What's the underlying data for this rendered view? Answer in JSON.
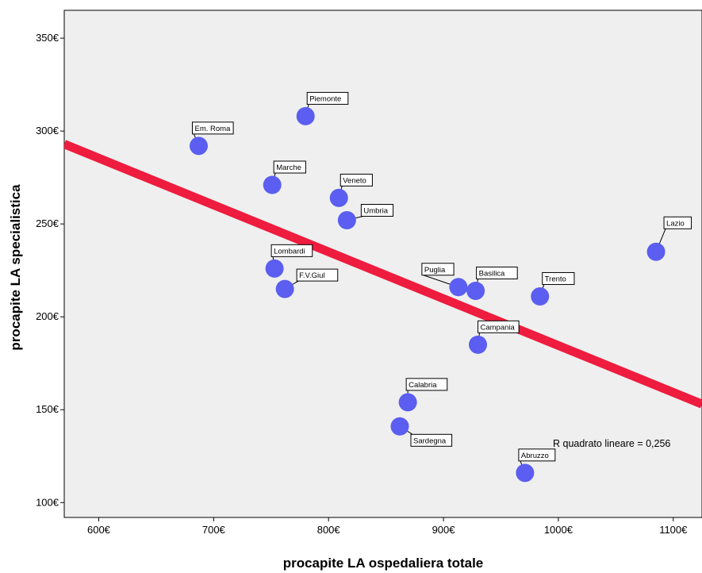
{
  "chart_data": {
    "type": "scatter",
    "title": "",
    "xlabel": "procapite LA ospedaliera totale",
    "ylabel": "procapite LA specialistica",
    "xlim": [
      570,
      1125
    ],
    "ylim": [
      92,
      365
    ],
    "x_ticks": [
      600,
      700,
      800,
      900,
      1000,
      1100
    ],
    "y_ticks": [
      100,
      150,
      200,
      250,
      300,
      350
    ],
    "x_tick_labels": [
      "600€",
      "700€",
      "800€",
      "900€",
      "1000€",
      "1100€"
    ],
    "y_tick_labels": [
      "100€",
      "150€",
      "200€",
      "250€",
      "300€",
      "350€"
    ],
    "grid": false,
    "colors": {
      "points": "#5b5ef0",
      "fit_line": "#ee1c3e",
      "plot_bg": "#efefef"
    },
    "points": [
      {
        "label": "Piemonte",
        "x": 780,
        "y": 308
      },
      {
        "label": "Em. Roma",
        "x": 687,
        "y": 292
      },
      {
        "label": "Marche",
        "x": 751,
        "y": 271
      },
      {
        "label": "Veneto",
        "x": 809,
        "y": 264
      },
      {
        "label": "Umbria",
        "x": 816,
        "y": 252
      },
      {
        "label": "Lazio",
        "x": 1085,
        "y": 235
      },
      {
        "label": "Lombardi",
        "x": 753,
        "y": 226
      },
      {
        "label": "F.V.Giul",
        "x": 762,
        "y": 215
      },
      {
        "label": "Puglia",
        "x": 913,
        "y": 216
      },
      {
        "label": "Basilica",
        "x": 928,
        "y": 214
      },
      {
        "label": "Trento",
        "x": 984,
        "y": 211
      },
      {
        "label": "Campania",
        "x": 930,
        "y": 185
      },
      {
        "label": "Calabria",
        "x": 869,
        "y": 154
      },
      {
        "label": "Sardegna",
        "x": 862,
        "y": 141
      },
      {
        "label": "Abruzzo",
        "x": 971,
        "y": 116
      }
    ],
    "fit_line": {
      "x": [
        570,
        1125
      ],
      "y": [
        293,
        153
      ]
    },
    "annotation": "R quadrato lineare = 0,256"
  }
}
